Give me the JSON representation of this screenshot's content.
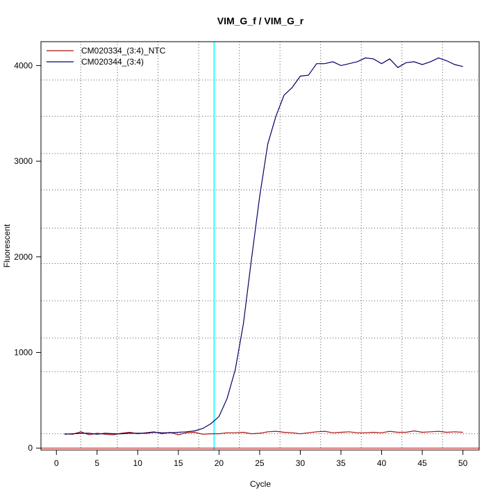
{
  "chart_data": {
    "type": "line",
    "title": "VIM_G_f / VIM_G_r",
    "xlabel": "Cycle",
    "ylabel": "Fluorescent",
    "xlim": [
      -1.9,
      52
    ],
    "ylim": [
      -20,
      4250
    ],
    "x_ticks": [
      0,
      5,
      10,
      15,
      20,
      25,
      30,
      35,
      40,
      45,
      50
    ],
    "y_ticks": [
      0,
      1000,
      2000,
      3000,
      4000
    ],
    "x_grid": [
      3,
      7.5,
      12.5,
      17.5,
      22.5,
      27.5,
      32.5,
      37.5,
      42.5,
      47.5
    ],
    "y_grid": [
      150,
      800,
      1150,
      1540,
      1930,
      2300,
      2700,
      3080,
      3470,
      3850
    ],
    "grid": true,
    "legend_position": "top-left",
    "threshold_line": {
      "x": 19.4,
      "color": "#33ffff"
    },
    "baseline": {
      "y": 0,
      "color": "#c00000"
    },
    "x": [
      1,
      2,
      3,
      4,
      5,
      6,
      7,
      8,
      9,
      10,
      11,
      12,
      13,
      14,
      15,
      16,
      17,
      18,
      19,
      20,
      21,
      22,
      23,
      24,
      25,
      26,
      27,
      28,
      29,
      30,
      31,
      32,
      33,
      34,
      35,
      36,
      37,
      38,
      39,
      40,
      41,
      42,
      43,
      44,
      45,
      46,
      47,
      48,
      49,
      50
    ],
    "series": [
      {
        "name": "CM020334_(3:4)_NTC",
        "color": "#aa1111",
        "values": [
          150,
          145,
          170,
          140,
          155,
          145,
          140,
          155,
          165,
          150,
          160,
          170,
          150,
          165,
          140,
          160,
          165,
          145,
          150,
          150,
          160,
          160,
          165,
          150,
          155,
          170,
          175,
          165,
          160,
          150,
          160,
          170,
          175,
          160,
          165,
          170,
          160,
          160,
          165,
          160,
          175,
          165,
          165,
          180,
          165,
          170,
          175,
          165,
          170,
          165
        ]
      },
      {
        "name": "CM020344_(3:4)",
        "color": "#000066",
        "values": [
          145,
          150,
          155,
          155,
          145,
          155,
          150,
          150,
          155,
          155,
          155,
          165,
          160,
          160,
          165,
          170,
          180,
          205,
          255,
          330,
          520,
          820,
          1300,
          1980,
          2630,
          3180,
          3470,
          3690,
          3770,
          3890,
          3900,
          4020,
          4020,
          4040,
          4000,
          4020,
          4040,
          4080,
          4070,
          4020,
          4070,
          3980,
          4030,
          4040,
          4010,
          4040,
          4080,
          4050,
          4010,
          3990
        ]
      }
    ]
  }
}
